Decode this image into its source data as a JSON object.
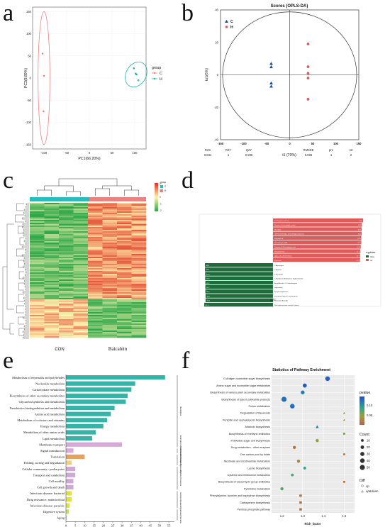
{
  "panel_labels": {
    "a": "a",
    "b": "b",
    "c": "c",
    "d": "d",
    "e": "e",
    "f": "f"
  },
  "colors": {
    "C": "#f08080",
    "H": "#20b2aa",
    "sig_red": "#e05a5a",
    "sig_green": "#1e6b3c",
    "kegg_teal": "#35b5a8",
    "heat_high": "#e03020",
    "heat_mid": "#fff3b0",
    "heat_low": "#2ea84a"
  },
  "chart_data": [
    {
      "id": "a",
      "type": "scatter",
      "xlabel": "PC1(66.20%)",
      "ylabel": "PC2(8.89%)",
      "xlim": [
        -125,
        125
      ],
      "ylim": [
        -160,
        160
      ],
      "xticks": [
        "-100",
        "-50",
        "0",
        "50",
        "100"
      ],
      "yticks": [
        "-150",
        "-100",
        "-50",
        "0",
        "50",
        "100",
        "150"
      ],
      "legend": {
        "title": "group",
        "items": [
          "C",
          "H"
        ],
        "position": "right"
      },
      "series": [
        {
          "name": "C",
          "color": "#f08080",
          "x": [
            -103,
            -100,
            -101
          ],
          "y": [
            55,
            5,
            -75
          ]
        },
        {
          "name": "H",
          "color": "#20b2aa",
          "x": [
            98,
            102,
            104,
            108
          ],
          "y": [
            22,
            10,
            8,
            -5
          ]
        }
      ],
      "ellipses": [
        {
          "group": "C",
          "cx": -100,
          "cy": 0,
          "rx": 13,
          "ry": 150
        },
        {
          "group": "H",
          "cx": 103,
          "cy": 8,
          "rx": 22,
          "ry": 30,
          "rotate": 30
        }
      ]
    },
    {
      "id": "b",
      "type": "scatter",
      "title": "Scores (OPLS-DA)",
      "xlabel": "t1 (70%)",
      "ylabel": "to1(6%)",
      "xlim": [
        -150,
        150
      ],
      "ylim": [
        -40,
        40
      ],
      "xticks": [
        "-150",
        "-100",
        "-50",
        "0",
        "50",
        "100",
        "150"
      ],
      "yticks": [
        "-40",
        "-20",
        "0",
        "20",
        "40"
      ],
      "legend": {
        "items": [
          "C",
          "H"
        ],
        "position": "top-left"
      },
      "series": [
        {
          "name": "C",
          "marker": "triangle",
          "color": "#1f4e8c",
          "x": [
            -40,
            -40,
            -40,
            -40
          ],
          "y": [
            7,
            5,
            -5,
            -7
          ]
        },
        {
          "name": "H",
          "marker": "circle",
          "color": "#e05a5a",
          "x": [
            40,
            40,
            40,
            40,
            40
          ],
          "y": [
            19,
            5,
            1,
            -2,
            -15
          ]
        }
      ],
      "stats": {
        "headers": [
          "R2X",
          "R2Y",
          "Q2Y",
          "RMSEE",
          "pre",
          "ort"
        ],
        "values": [
          "0.831",
          "1",
          "0.995",
          "0.006",
          "1",
          "2"
        ]
      }
    },
    {
      "id": "c",
      "type": "heatmap",
      "groups": [
        "CON",
        "Baicalein"
      ],
      "legend": {
        "title": "group",
        "items": [
          "C",
          "H"
        ],
        "scale": [
          "2",
          "1",
          "0",
          "-1",
          "-2"
        ]
      }
    },
    {
      "id": "d",
      "type": "bar",
      "xlabel": "logFC",
      "legend": {
        "title": "regulated",
        "items": [
          "down",
          "up"
        ],
        "position": "right"
      },
      "categories_up": [
        "5'-Phosphouracil Cot",
        "Palmitin 6-O-(acetyl)gluconate",
        "Phosphat",
        "CMP-N-trimethyl-2-aminoethylphosphonate",
        "Isoprenyl-alc",
        "Plasmalogen PMR",
        "Cyanidin 3-O-(acetyl)glucoside",
        "Sulfatadiamine",
        "alpha-1,6-L-Arabinobiose",
        "Asparstrin"
      ],
      "values_up": [
        48.9,
        48.2,
        48.1,
        48.1,
        47.9,
        47.9,
        47.6,
        47.4,
        47.3,
        47.2
      ],
      "categories_down": [
        "L-Asparagine",
        "L-Arginine",
        "1-Pyrrolidine",
        "L-Pyridoxine Methylamine (hydrochloride)",
        "Acetyl-Acetyl-L-2,3-dioxobutyrate",
        "Isopentenyl",
        "Acetylmethylalanine",
        "Phosphoenolpyruvic N-phosphate",
        "Coenzyme A (CoA)",
        "N-acetylneuraminic methyl-1-deoxy"
      ],
      "values_down": [
        -36.9,
        -36.9,
        -36.8,
        -36.8,
        -36.7,
        -36.7,
        -36.7,
        -36.6,
        -36.6,
        -37.3
      ],
      "xlim": [
        -40,
        60
      ]
    },
    {
      "id": "e",
      "type": "bar",
      "categories": [
        "Metabolism of terpenoids and polyketides",
        "Nucleotide metabolism",
        "Carbohydrate metabolism",
        "Biosynthesis of other secondary metabolites",
        "Glycan biosynthesis and metabolism",
        "Xenobiotics biodegradation and metabolism",
        "Amino acid metabolism",
        "Metabolism of cofactors and vitamins",
        "Energy metabolism",
        "Metabolism of other amino acids",
        "Lipid metabolism",
        "Membrane transport",
        "Signal transduction",
        "Translation",
        "Folding, sorting and degradation",
        "Cellular community - prokaryotes",
        "Transport and catabolism",
        "Cell motility",
        "Cell growth and death",
        "Infectious disease: bacterial",
        "Drug resistance: antimicrobial",
        "Infectious disease: parasitic",
        "Digestive system",
        "Aging"
      ],
      "values": [
        53,
        37,
        35,
        33,
        32,
        26,
        24,
        22,
        20,
        16,
        14,
        30,
        4,
        10,
        3,
        5,
        5,
        4,
        4,
        3,
        3,
        2,
        1.5,
        0.5
      ],
      "colors": [
        "#35b5a8",
        "#35b5a8",
        "#35b5a8",
        "#35b5a8",
        "#35b5a8",
        "#35b5a8",
        "#35b5a8",
        "#35b5a8",
        "#35b5a8",
        "#35b5a8",
        "#35b5a8",
        "#d8a8d8",
        "#d8a8d8",
        "#e8a060",
        "#f0d080",
        "#d0a8d8",
        "#d0a8d8",
        "#d0a8d8",
        "#d0a8d8",
        "#e0e040",
        "#e0e040",
        "#e0e040",
        "#c0e060",
        "#c8d8a8"
      ],
      "xticks": [
        "0",
        "5",
        "10",
        "15",
        "20",
        "25",
        "30",
        "35",
        "40",
        "45",
        "50",
        "55"
      ],
      "xlim": [
        0,
        58
      ],
      "side_groups": [
        "Metabolism",
        "Environmental Information Processing",
        "Genetic Information Processing",
        "Cellular Processes",
        "Human Diseases",
        "Organismal Systems"
      ]
    },
    {
      "id": "f",
      "type": "scatter",
      "title": "Statistics of Pathway Enrichment",
      "xlabel": "Rich_factor",
      "xlim": [
        1.15,
        1.55
      ],
      "xticks": [
        "1.2",
        "1.3",
        "1.4",
        "1.5"
      ],
      "categories": [
        "O-Antigen nucleotide sugar biosynthesis",
        "Amino sugar and nucleotide sugar metabolism",
        "Biosynthesis of various plant secondary metabolites",
        "Biosynthesis of type II polyketide products",
        "Purine metabolism",
        "Degradation of flavonoids",
        "Penicillin and cephalosporin biosynthesis",
        "Aflatoxin biosynthesis",
        "Biosynthesis of enediyne antibiotics",
        "Polyketide sugar unit biosynthesis",
        "Drug metabolism - other enzymes",
        "One carbon pool by folate",
        "Nicotinate and nicotinamide metabolism",
        "Lysine biosynthesis",
        "Cysteine and methionine metabolism",
        "Biosynthesis of vancomycin group antibiotics",
        "Pyrimidine metabolism",
        "Phenylalanine, tyrosine and tryptophan biosynthesis",
        "Carbapenem biosynthesis",
        "Pentose phosphate pathway"
      ],
      "x": [
        1.42,
        1.31,
        1.3,
        1.21,
        1.25,
        1.5,
        1.5,
        1.37,
        1.5,
        1.37,
        1.26,
        1.5,
        1.28,
        1.31,
        1.25,
        1.5,
        1.2,
        1.29,
        1.29,
        1.29
      ],
      "count": [
        40,
        30,
        25,
        50,
        40,
        5,
        5,
        15,
        5,
        15,
        15,
        5,
        15,
        10,
        10,
        5,
        15,
        10,
        10,
        10
      ],
      "pvalue": [
        0.16,
        0.16,
        0.14,
        0.15,
        0.15,
        0.05,
        0.04,
        0.14,
        0.08,
        0.06,
        0.02,
        0.02,
        0.03,
        0.12,
        0.1,
        0.02,
        0.09,
        0.02,
        0.02,
        0.02
      ],
      "diff": [
        "up",
        "up",
        "up",
        "up",
        "up",
        "up&down",
        "up&down",
        "up&down",
        "up",
        "up",
        "up",
        "up",
        "up",
        "up",
        "up",
        "up",
        "up",
        "up",
        "up",
        "up"
      ],
      "legend": {
        "pvalue_title": "pvalue",
        "pvalue_ticks": [
          "0.10",
          "0.05"
        ],
        "count_title": "Count",
        "count_ticks": [
          "10",
          "20",
          "30",
          "40",
          "50"
        ],
        "diff_title": "Diff",
        "diff_items": [
          "up",
          "up&down"
        ]
      }
    }
  ]
}
